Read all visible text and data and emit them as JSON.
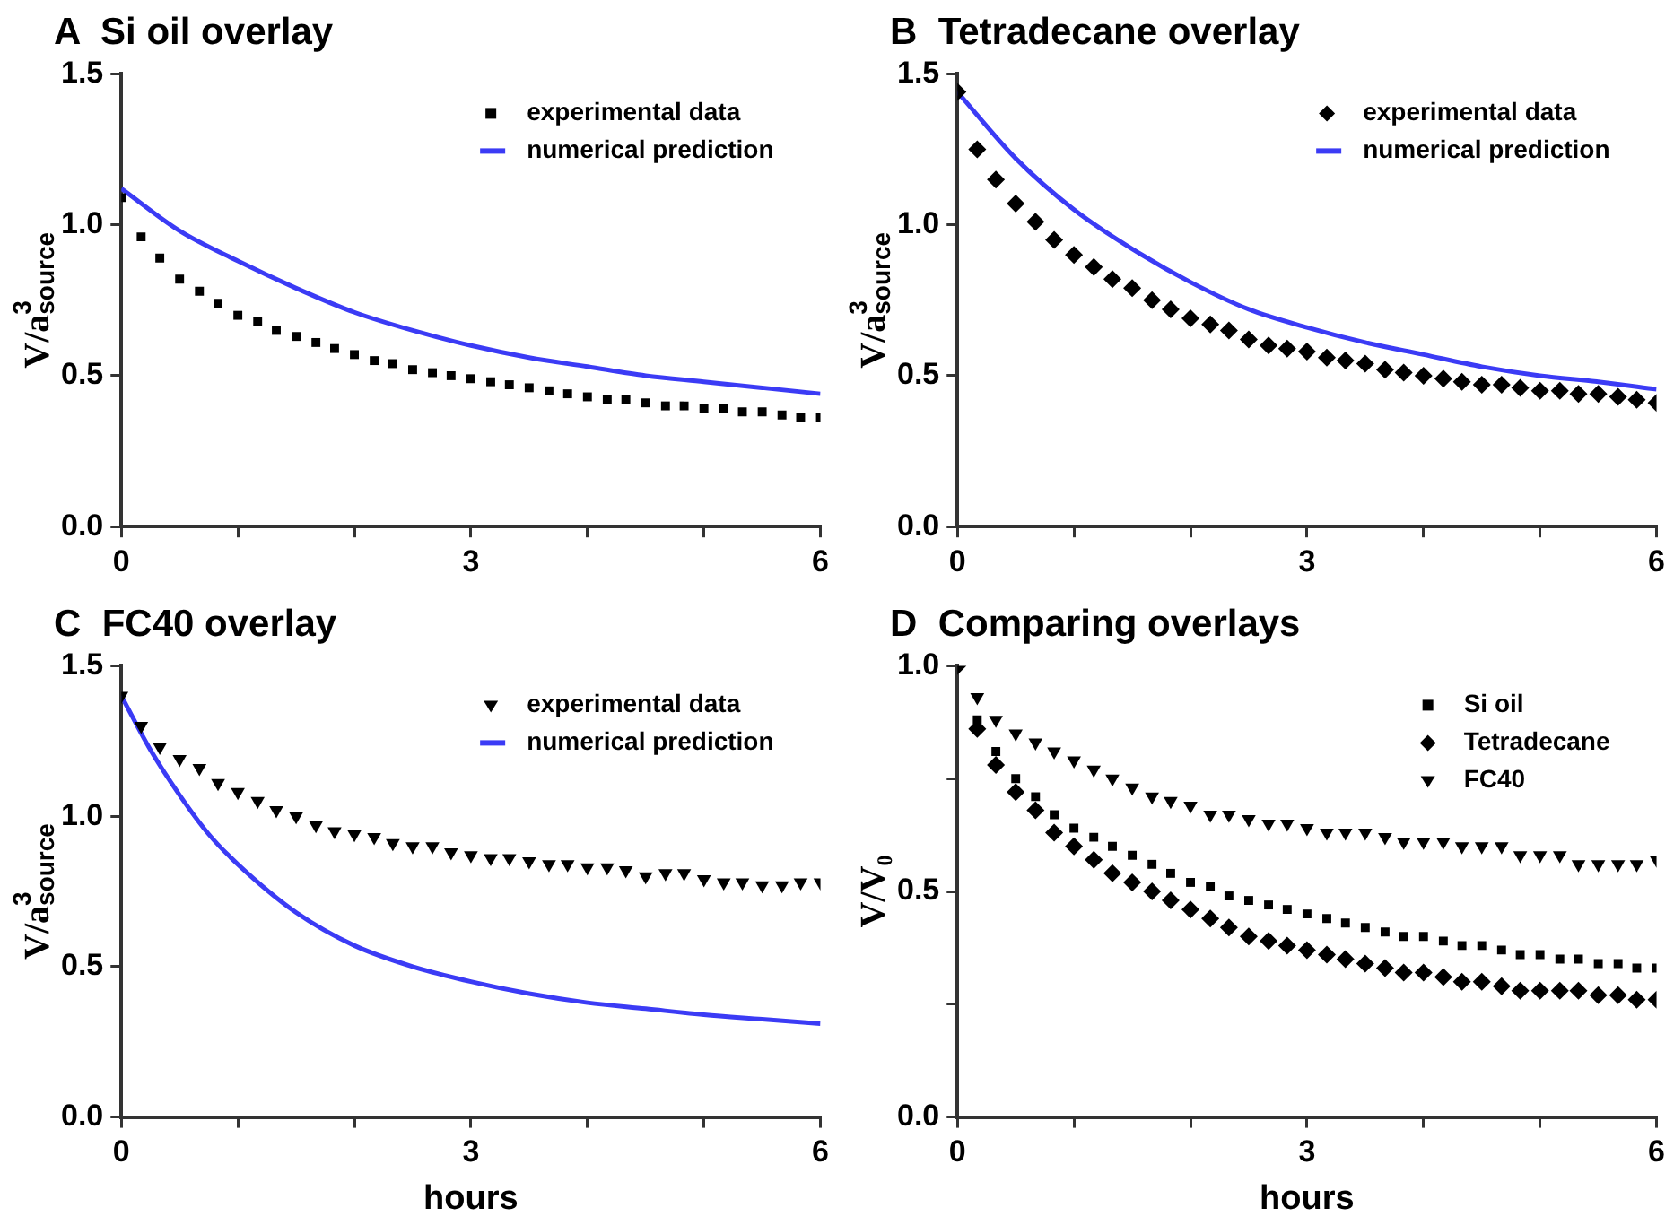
{
  "chart_data": [
    {
      "type": "scatter",
      "title": "A  Si oil overlay",
      "ylabel": "V/a$^{3}$$_{source}$",
      "legend": "top right",
      "x": [
        0,
        0.17,
        0.33,
        0.5,
        0.67,
        0.83,
        1,
        1.17,
        1.33,
        1.5,
        1.67,
        1.83,
        2,
        2.17,
        2.33,
        2.5,
        2.67,
        2.83,
        3,
        3.17,
        3.33,
        3.5,
        3.67,
        3.83,
        4,
        4.17,
        4.33,
        4.5,
        4.67,
        4.83,
        5,
        5.17,
        5.33,
        5.5,
        5.67,
        5.83,
        6
      ],
      "xlim": [
        0,
        6
      ],
      "xticks": [
        0,
        {
          "value": 1,
          "label": null
        },
        {
          "value": 2,
          "label": null
        },
        3,
        {
          "value": 4,
          "label": null
        },
        {
          "value": 5,
          "label": null
        },
        6
      ],
      "ylim": [
        0,
        1.5
      ],
      "yticks": [
        {
          "value": 0,
          "label": "0.0"
        },
        {
          "value": 0.5,
          "label": "0.5"
        },
        {
          "value": 1,
          "label": "1.0"
        },
        {
          "value": 1.5,
          "label": "1.5"
        }
      ],
      "series": [
        {
          "name": "experimental data",
          "marker": "square",
          "color": "#000000",
          "values": [
            1.09,
            0.96,
            0.89,
            0.82,
            0.78,
            0.74,
            0.7,
            0.68,
            0.65,
            0.63,
            0.61,
            0.59,
            0.57,
            0.55,
            0.54,
            0.52,
            0.51,
            0.5,
            0.49,
            0.48,
            0.47,
            0.46,
            0.45,
            0.44,
            0.43,
            0.42,
            0.42,
            0.41,
            0.4,
            0.4,
            0.39,
            0.39,
            0.38,
            0.38,
            0.37,
            0.36,
            0.36
          ]
        },
        {
          "name": "numerical prediction",
          "type": "line",
          "color": "#3b3bf5",
          "x": [
            0,
            0.5,
            1,
            1.5,
            2,
            2.5,
            3,
            3.5,
            4,
            4.5,
            5,
            5.5,
            6
          ],
          "values": [
            1.12,
            0.98,
            0.88,
            0.79,
            0.71,
            0.65,
            0.6,
            0.56,
            0.53,
            0.5,
            0.48,
            0.46,
            0.44
          ]
        }
      ]
    },
    {
      "type": "scatter",
      "title": "B  Tetradecane overlay",
      "ylabel": "V/a$^{3}$$_{source}$",
      "legend": "top right",
      "x": [
        0,
        0.17,
        0.33,
        0.5,
        0.67,
        0.83,
        1,
        1.17,
        1.33,
        1.5,
        1.67,
        1.83,
        2,
        2.17,
        2.33,
        2.5,
        2.67,
        2.83,
        3,
        3.17,
        3.33,
        3.5,
        3.67,
        3.83,
        4,
        4.17,
        4.33,
        4.5,
        4.67,
        4.83,
        5,
        5.17,
        5.33,
        5.5,
        5.67,
        5.83,
        6
      ],
      "xlim": [
        0,
        6
      ],
      "xticks": [
        0,
        {
          "value": 1,
          "label": null
        },
        {
          "value": 2,
          "label": null
        },
        3,
        {
          "value": 4,
          "label": null
        },
        {
          "value": 5,
          "label": null
        },
        6
      ],
      "ylim": [
        0,
        1.5
      ],
      "yticks": [
        {
          "value": 0,
          "label": "0.0"
        },
        {
          "value": 0.5,
          "label": "0.5"
        },
        {
          "value": 1,
          "label": "1.0"
        },
        {
          "value": 1.5,
          "label": "1.5"
        }
      ],
      "series": [
        {
          "name": "experimental data",
          "marker": "diamond",
          "color": "#000000",
          "values": [
            1.44,
            1.25,
            1.15,
            1.07,
            1.01,
            0.95,
            0.9,
            0.86,
            0.82,
            0.79,
            0.75,
            0.72,
            0.69,
            0.67,
            0.65,
            0.62,
            0.6,
            0.59,
            0.58,
            0.56,
            0.55,
            0.54,
            0.52,
            0.51,
            0.5,
            0.49,
            0.48,
            0.47,
            0.47,
            0.46,
            0.45,
            0.45,
            0.44,
            0.44,
            0.43,
            0.42,
            0.41
          ]
        },
        {
          "name": "numerical prediction",
          "type": "line",
          "color": "#3b3bf5",
          "x": [
            0,
            0.5,
            1,
            1.5,
            2,
            2.5,
            3,
            3.5,
            4,
            4.5,
            5,
            5.5,
            6
          ],
          "values": [
            1.44,
            1.22,
            1.05,
            0.92,
            0.81,
            0.72,
            0.66,
            0.61,
            0.57,
            0.53,
            0.5,
            0.48,
            0.455
          ]
        }
      ]
    },
    {
      "type": "scatter",
      "title": "C  FC40 overlay",
      "xlabel": "hours",
      "ylabel": "V/a$^{3}$$_{source}$",
      "legend": "top right",
      "x": [
        0,
        0.17,
        0.33,
        0.5,
        0.67,
        0.83,
        1,
        1.17,
        1.33,
        1.5,
        1.67,
        1.83,
        2,
        2.17,
        2.33,
        2.5,
        2.67,
        2.83,
        3,
        3.17,
        3.33,
        3.5,
        3.67,
        3.83,
        4,
        4.17,
        4.33,
        4.5,
        4.67,
        4.83,
        5,
        5.17,
        5.33,
        5.5,
        5.67,
        5.83,
        6
      ],
      "xlim": [
        0,
        6
      ],
      "xticks": [
        0,
        {
          "value": 1,
          "label": null
        },
        {
          "value": 2,
          "label": null
        },
        3,
        {
          "value": 4,
          "label": null
        },
        {
          "value": 5,
          "label": null
        },
        6
      ],
      "ylim": [
        0,
        1.5
      ],
      "yticks": [
        {
          "value": 0,
          "label": "0.0"
        },
        {
          "value": 0.5,
          "label": "0.5"
        },
        {
          "value": 1,
          "label": "1.0"
        },
        {
          "value": 1.5,
          "label": "1.5"
        }
      ],
      "series": [
        {
          "name": "experimental data",
          "marker": "triangle",
          "color": "#000000",
          "values": [
            1.4,
            1.3,
            1.23,
            1.19,
            1.16,
            1.11,
            1.08,
            1.05,
            1.02,
            1.0,
            0.97,
            0.95,
            0.94,
            0.93,
            0.91,
            0.9,
            0.9,
            0.88,
            0.87,
            0.86,
            0.86,
            0.85,
            0.84,
            0.84,
            0.83,
            0.83,
            0.82,
            0.8,
            0.81,
            0.81,
            0.79,
            0.78,
            0.78,
            0.77,
            0.77,
            0.78,
            0.78
          ]
        },
        {
          "name": "numerical prediction",
          "type": "line",
          "color": "#3b3bf5",
          "x": [
            0,
            0.25,
            0.5,
            0.75,
            1,
            1.5,
            2,
            2.5,
            3,
            3.5,
            4,
            4.5,
            5,
            5.5,
            6
          ],
          "values": [
            1.4,
            1.22,
            1.07,
            0.94,
            0.84,
            0.68,
            0.57,
            0.5,
            0.45,
            0.41,
            0.38,
            0.36,
            0.34,
            0.325,
            0.31
          ]
        }
      ]
    },
    {
      "type": "scatter",
      "title": "D  Comparing overlays",
      "xlabel": "hours",
      "ylabel": "V/V₀",
      "legend": "top right",
      "x": [
        0,
        0.17,
        0.33,
        0.5,
        0.67,
        0.83,
        1,
        1.17,
        1.33,
        1.5,
        1.67,
        1.83,
        2,
        2.17,
        2.33,
        2.5,
        2.67,
        2.83,
        3,
        3.17,
        3.33,
        3.5,
        3.67,
        3.83,
        4,
        4.17,
        4.33,
        4.5,
        4.67,
        4.83,
        5,
        5.17,
        5.33,
        5.5,
        5.67,
        5.83,
        6
      ],
      "xlim": [
        0,
        6
      ],
      "xticks": [
        0,
        {
          "value": 1,
          "label": null
        },
        {
          "value": 2,
          "label": null
        },
        3,
        {
          "value": 4,
          "label": null
        },
        {
          "value": 5,
          "label": null
        },
        6
      ],
      "ylim": [
        0,
        1
      ],
      "yticks": [
        {
          "value": 0,
          "label": "0.0"
        },
        {
          "value": 0.25,
          "label": null
        },
        {
          "value": 0.5,
          "label": "0.5"
        },
        {
          "value": 0.75,
          "label": null
        },
        {
          "value": 1,
          "label": "1.0"
        }
      ],
      "series": [
        {
          "name": "Si oil",
          "marker": "square",
          "color": "#000000",
          "values": [
            null,
            0.88,
            0.81,
            0.75,
            0.71,
            0.67,
            0.64,
            0.62,
            0.6,
            0.58,
            0.56,
            0.54,
            0.52,
            0.51,
            0.49,
            0.48,
            0.47,
            0.46,
            0.45,
            0.44,
            0.43,
            0.42,
            0.41,
            0.4,
            0.4,
            0.39,
            0.38,
            0.38,
            0.37,
            0.36,
            0.36,
            0.35,
            0.35,
            0.34,
            0.34,
            0.33,
            0.33
          ]
        },
        {
          "name": "Tetradecane",
          "marker": "diamond",
          "color": "#000000",
          "values": [
            1.0,
            0.86,
            0.78,
            0.72,
            0.68,
            0.63,
            0.6,
            0.57,
            0.54,
            0.52,
            0.5,
            0.48,
            0.46,
            0.44,
            0.42,
            0.4,
            0.39,
            0.38,
            0.37,
            0.36,
            0.35,
            0.34,
            0.33,
            0.32,
            0.32,
            0.31,
            0.3,
            0.3,
            0.29,
            0.28,
            0.28,
            0.28,
            0.28,
            0.27,
            0.27,
            0.26,
            0.26
          ]
        },
        {
          "name": "FC40",
          "marker": "triangle",
          "color": "#000000",
          "values": [
            null,
            0.93,
            0.88,
            0.85,
            0.83,
            0.81,
            0.79,
            0.77,
            0.75,
            0.73,
            0.71,
            0.7,
            0.69,
            0.67,
            0.67,
            0.66,
            0.65,
            0.65,
            0.64,
            0.63,
            0.63,
            0.63,
            0.62,
            0.61,
            0.61,
            0.61,
            0.6,
            0.6,
            0.6,
            0.58,
            0.58,
            0.58,
            0.56,
            0.56,
            0.56,
            0.56,
            0.57
          ]
        }
      ]
    }
  ]
}
